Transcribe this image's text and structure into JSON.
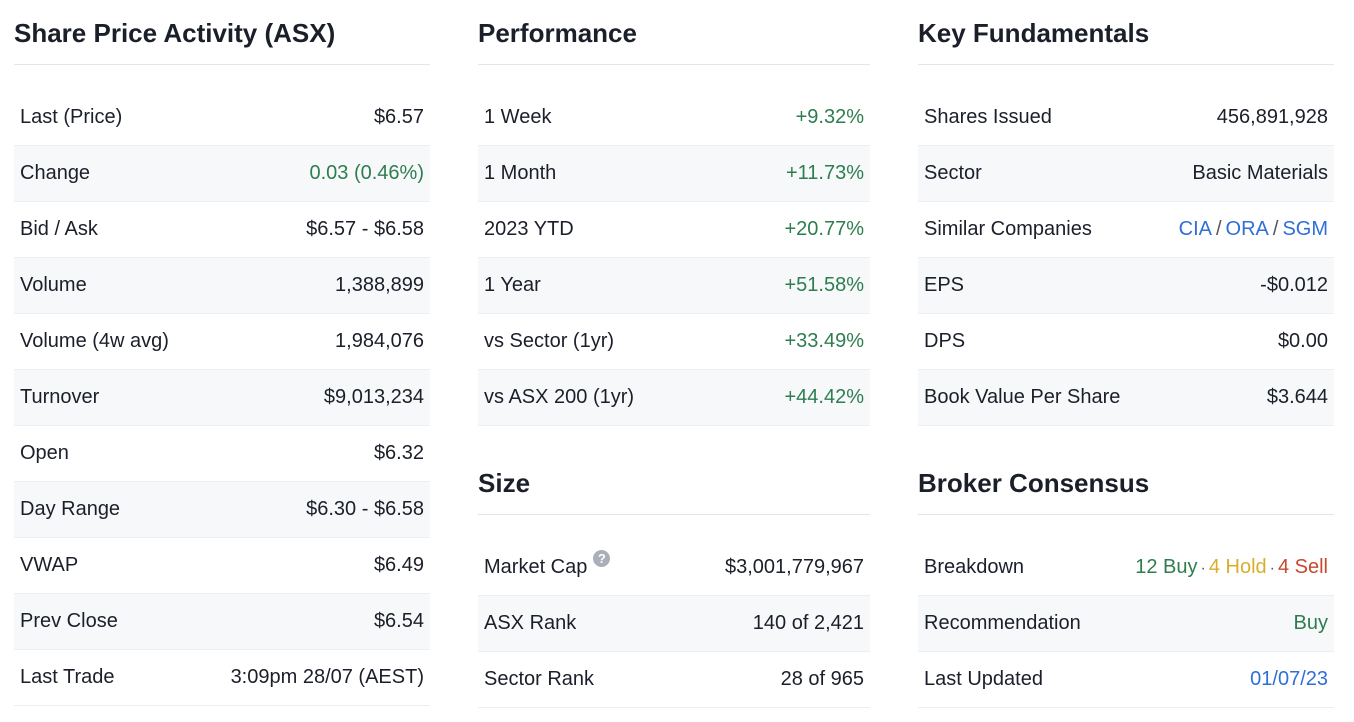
{
  "columns": [
    {
      "sections": [
        {
          "title": "Share Price Activity (ASX)",
          "rows": [
            {
              "label": "Last (Price)",
              "value": "$6.57"
            },
            {
              "label": "Change",
              "value": "0.03 (0.46%)",
              "color": "#2e7d4f"
            },
            {
              "label": "Bid / Ask",
              "value": "$6.57 - $6.58"
            },
            {
              "label": "Volume",
              "value": "1,388,899"
            },
            {
              "label": "Volume (4w avg)",
              "value": "1,984,076"
            },
            {
              "label": "Turnover",
              "value": "$9,013,234"
            },
            {
              "label": "Open",
              "value": "$6.32"
            },
            {
              "label": "Day Range",
              "value": "$6.30 - $6.58"
            },
            {
              "label": "VWAP",
              "value": "$6.49"
            },
            {
              "label": "Prev Close",
              "value": "$6.54"
            },
            {
              "label": "Last Trade",
              "value": "3:09pm 28/07 (AEST)"
            }
          ]
        }
      ]
    },
    {
      "sections": [
        {
          "title": "Performance",
          "rows": [
            {
              "label": "1 Week",
              "value": "+9.32%",
              "color": "#2e7d4f"
            },
            {
              "label": "1 Month",
              "value": "+11.73%",
              "color": "#2e7d4f"
            },
            {
              "label": "2023 YTD",
              "value": "+20.77%",
              "color": "#2e7d4f"
            },
            {
              "label": "1 Year",
              "value": "+51.58%",
              "color": "#2e7d4f"
            },
            {
              "label": "vs Sector (1yr)",
              "value": "+33.49%",
              "color": "#2e7d4f"
            },
            {
              "label": "vs ASX 200 (1yr)",
              "value": "+44.42%",
              "color": "#2e7d4f"
            }
          ]
        },
        {
          "title": "Size",
          "rows": [
            {
              "label": "Market Cap",
              "help_icon": "?",
              "value": "$3,001,779,967"
            },
            {
              "label": "ASX Rank",
              "value": "140 of 2,421"
            },
            {
              "label": "Sector Rank",
              "value": "28 of 965"
            }
          ]
        }
      ]
    },
    {
      "sections": [
        {
          "title": "Key Fundamentals",
          "rows": [
            {
              "label": "Shares Issued",
              "value": "456,891,928"
            },
            {
              "label": "Sector",
              "value": "Basic Materials"
            },
            {
              "label": "Similar Companies",
              "separator": "/",
              "parts": [
                {
                  "text": "CIA",
                  "color": "#2f6fd6"
                },
                {
                  "text": "ORA",
                  "color": "#2f6fd6"
                },
                {
                  "text": "SGM",
                  "color": "#2f6fd6"
                }
              ]
            },
            {
              "label": "EPS",
              "value": "-$0.012"
            },
            {
              "label": "DPS",
              "value": "$0.00"
            },
            {
              "label": "Book Value Per Share",
              "value": "$3.644"
            }
          ]
        },
        {
          "title": "Broker Consensus",
          "rows": [
            {
              "label": "Breakdown",
              "separator": "·",
              "parts": [
                {
                  "text": "12 Buy",
                  "color": "#2e7d4f"
                },
                {
                  "text": "4 Hold",
                  "color": "#d9ae2c"
                },
                {
                  "text": "4 Sell",
                  "color": "#c8492b"
                }
              ]
            },
            {
              "label": "Recommendation",
              "value": "Buy",
              "color": "#2e7d4f"
            },
            {
              "label": "Last Updated",
              "value": "01/07/23",
              "color": "#2f6fd6"
            }
          ]
        }
      ]
    }
  ]
}
